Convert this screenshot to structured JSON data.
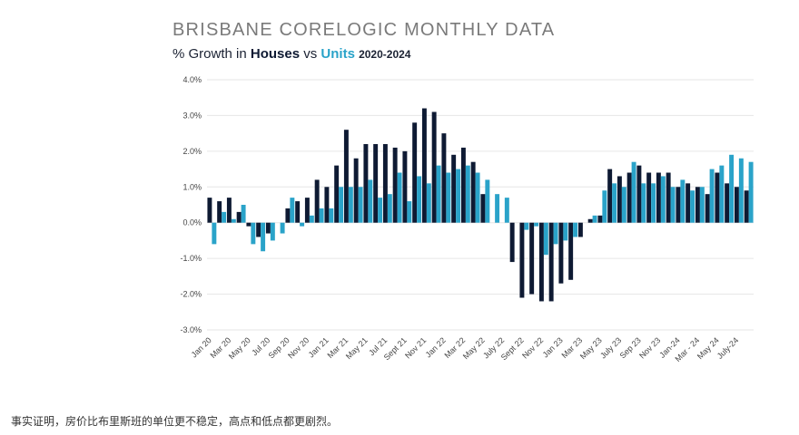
{
  "chart_data": {
    "type": "bar",
    "title": "BRISBANE CORELOGIC MONTHLY DATA",
    "subtitle": [
      "% Growth in",
      "vs",
      "2020-2024"
    ],
    "categories": [
      "Jan 20",
      null,
      "Mar 20",
      null,
      "May 20",
      null,
      "Jul 20",
      null,
      "Sep 20",
      null,
      "Nov 20",
      null,
      "Jan 21",
      null,
      "Mar 21",
      null,
      "May 21",
      null,
      "Jul 21",
      null,
      "Sept 21",
      null,
      "Nov 21",
      null,
      "Jan 22",
      null,
      "Mar 22",
      null,
      "May 22",
      null,
      "July 22",
      null,
      "Sept 22",
      null,
      "Nov 22",
      null,
      "Jan 23",
      null,
      "Mar 23",
      null,
      "May 23",
      null,
      "July 23",
      null,
      "Sep 23",
      null,
      "Nov 23",
      null,
      "Jan-24",
      null,
      "Mar - 24",
      null,
      "May 24",
      null,
      "July-24",
      null
    ],
    "series": [
      {
        "name": "Houses",
        "color": "#0e1a33",
        "values": [
          0.7,
          0.6,
          0.7,
          0.3,
          -0.1,
          -0.4,
          -0.3,
          0.0,
          0.4,
          0.6,
          0.7,
          1.2,
          1.0,
          1.6,
          2.6,
          1.8,
          2.2,
          2.2,
          2.2,
          2.1,
          2.0,
          2.8,
          3.2,
          3.1,
          2.5,
          1.9,
          2.1,
          1.7,
          0.8,
          0.0,
          0.0,
          -1.1,
          -2.1,
          -2.0,
          -2.2,
          -2.2,
          -1.7,
          -1.6,
          -0.4,
          0.1,
          0.2,
          1.5,
          1.3,
          1.4,
          1.6,
          1.4,
          1.4,
          1.4,
          1.0,
          1.1,
          1.0,
          0.8,
          1.4,
          1.1,
          1.0,
          0.9
        ]
      },
      {
        "name": "Units",
        "color": "#2aa3c9",
        "values": [
          -0.6,
          0.3,
          0.1,
          0.5,
          -0.6,
          -0.8,
          -0.5,
          -0.3,
          0.7,
          -0.1,
          0.2,
          0.4,
          0.4,
          1.0,
          1.0,
          1.0,
          1.2,
          0.7,
          0.8,
          1.4,
          0.6,
          1.3,
          1.1,
          1.6,
          1.4,
          1.5,
          1.6,
          1.4,
          1.2,
          0.8,
          0.7,
          0.0,
          -0.2,
          -0.1,
          -0.9,
          -0.6,
          -0.5,
          -0.4,
          0.0,
          0.2,
          0.9,
          1.1,
          1.0,
          1.7,
          1.1,
          1.1,
          1.3,
          1.0,
          1.2,
          0.9,
          1.0,
          1.5,
          1.6,
          1.9,
          1.8,
          1.7
        ]
      }
    ],
    "ylim": [
      -3,
      4
    ],
    "yticks": [
      {
        "value": 4,
        "label": "4.0%"
      },
      {
        "value": 3,
        "label": "3.0%"
      },
      {
        "value": 2,
        "label": "2.0%"
      },
      {
        "value": 1,
        "label": "1.0%"
      },
      {
        "value": 0,
        "label": "0.0%"
      },
      {
        "value": -1,
        "label": "-1.0%"
      },
      {
        "value": -2,
        "label": "-2.0%"
      },
      {
        "value": -3,
        "label": "-3.0%"
      }
    ],
    "grid": true
  },
  "caption": "事实证明，房价比布里斯班的单位更不稳定，高点和低点都更剧烈。"
}
